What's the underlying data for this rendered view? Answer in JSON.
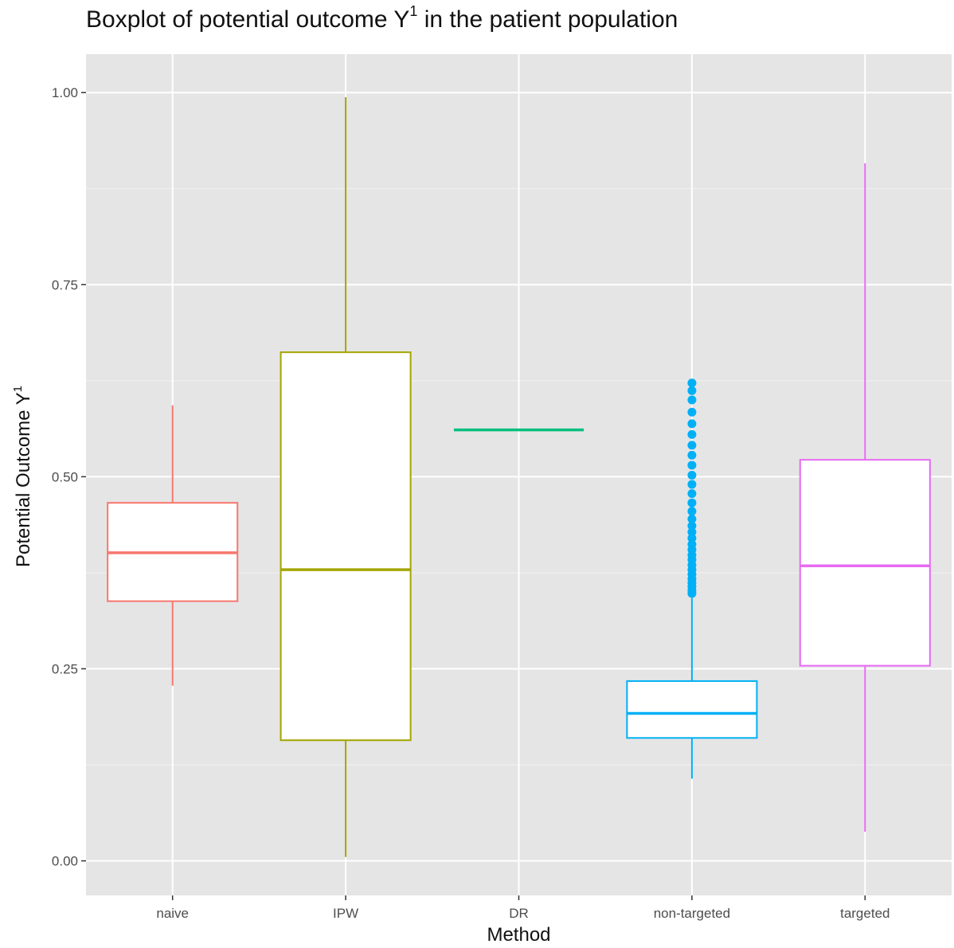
{
  "chart_data": {
    "type": "boxplot",
    "title": "Boxplot of potential outcome Y",
    "title_superscript": "1",
    "title_suffix": " in the patient population",
    "xlabel": "Method",
    "ylabel": "Potential Outcome Y",
    "ylabel_superscript": "1",
    "ylim": [
      -0.045,
      1.05
    ],
    "yticks": [
      0.0,
      0.25,
      0.5,
      0.75,
      1.0
    ],
    "ytick_labels": [
      "0.00",
      "0.25",
      "0.50",
      "0.75",
      "1.00"
    ],
    "grid": true,
    "panel_background": "#e5e5e5",
    "categories": [
      "naive",
      "IPW",
      "DR",
      "non-targeted",
      "targeted"
    ],
    "boxes": [
      {
        "name": "naive",
        "color": "#f8766d",
        "whisker_low": 0.228,
        "q1": 0.338,
        "median": 0.401,
        "q3": 0.466,
        "whisker_high": 0.593,
        "outliers": []
      },
      {
        "name": "IPW",
        "color": "#a3a500",
        "whisker_low": 0.005,
        "q1": 0.157,
        "median": 0.379,
        "q3": 0.662,
        "whisker_high": 0.994,
        "outliers": []
      },
      {
        "name": "DR",
        "color": "#00bf7d",
        "whisker_low": 0.561,
        "q1": 0.561,
        "median": 0.561,
        "q3": 0.561,
        "whisker_high": 0.561,
        "outliers": []
      },
      {
        "name": "non-targeted",
        "color": "#00b0f6",
        "whisker_low": 0.107,
        "q1": 0.16,
        "median": 0.192,
        "q3": 0.234,
        "whisker_high": 0.342,
        "outliers": [
          0.348,
          0.352,
          0.357,
          0.362,
          0.367,
          0.373,
          0.379,
          0.385,
          0.392,
          0.398,
          0.405,
          0.412,
          0.42,
          0.428,
          0.436,
          0.445,
          0.455,
          0.466,
          0.478,
          0.49,
          0.502,
          0.515,
          0.528,
          0.541,
          0.555,
          0.569,
          0.584,
          0.6,
          0.612,
          0.622
        ]
      },
      {
        "name": "targeted",
        "color": "#e76bf3",
        "whisker_low": 0.038,
        "q1": 0.254,
        "median": 0.384,
        "q3": 0.522,
        "whisker_high": 0.908,
        "outliers": []
      }
    ]
  }
}
